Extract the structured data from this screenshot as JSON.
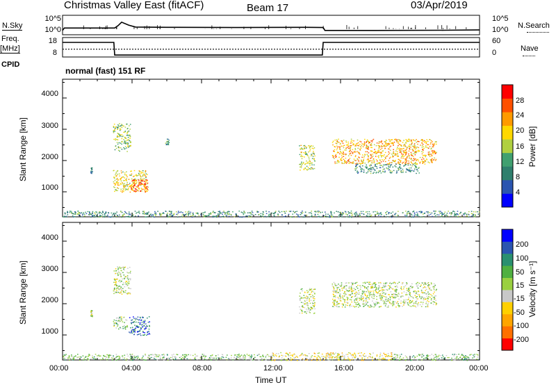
{
  "header": {
    "title": "Christmas Valley East (fitACF)",
    "beam": "Beam 17",
    "date": "03/Apr/2019"
  },
  "top_panels": {
    "sky_label": "N.Sky",
    "sky_ticks": [
      "10^5",
      "10^0"
    ],
    "search_label": "N.Search",
    "search_ticks": [
      "10^5",
      "10^0"
    ],
    "freq_label_1": "Freq.",
    "freq_label_2": "[MHz]",
    "freq_ticks": [
      "18",
      "8"
    ],
    "nave_label": "Nave",
    "nave_ticks": [
      "60",
      "0"
    ],
    "cpid_label": "CPID",
    "mode_text": "normal (fast) 151 RF"
  },
  "axes": {
    "xlabel": "Time UT",
    "x_ticks": [
      "00:00",
      "04:00",
      "08:00",
      "12:00",
      "16:00",
      "20:00",
      "00:00"
    ],
    "ylabel": "Slant Range [km]",
    "y_ticks": [
      "4000",
      "3000",
      "2000",
      "1000"
    ]
  },
  "colorbars": {
    "power_label": "Power [dB]",
    "power_ticks": [
      "28",
      "24",
      "20",
      "16",
      "12",
      "8",
      "4"
    ],
    "velocity_label": "Velocity [m s⁻¹]",
    "velocity_ticks": [
      "200",
      "100",
      "50",
      "15",
      "-15",
      "-50",
      "-100",
      "-200"
    ]
  },
  "colors": {
    "power_scale": [
      "#0000ff",
      "#2b55b0",
      "#2f7f6d",
      "#40a070",
      "#b0d040",
      "#ffd800",
      "#ff9a00",
      "#ff5000",
      "#ff0000"
    ],
    "velocity_scale": [
      "#ff0000",
      "#ff7000",
      "#ffa500",
      "#ffd000",
      "#c8c8c8",
      "#9ad040",
      "#50b040",
      "#2a9070",
      "#2b55b0",
      "#0000ff"
    ]
  },
  "chart_data": [
    {
      "type": "line",
      "title": "N.Sky / N.Search",
      "x_unit": "hours UT",
      "xlim": [
        0,
        24
      ],
      "series": [
        {
          "name": "N.Sky",
          "x": [
            0,
            0.1,
            3.0,
            3.2,
            3.4,
            3.8,
            4.2,
            6,
            10,
            14,
            15.0,
            15.1,
            18,
            22,
            23.9,
            24
          ],
          "y": [
            0.3,
            0.55,
            0.55,
            0.8,
            1.15,
            0.85,
            0.65,
            0.62,
            0.6,
            0.62,
            0.6,
            0.3,
            0.3,
            0.32,
            0.35,
            0.35
          ]
        }
      ]
    },
    {
      "type": "line",
      "title": "Freq. / Nave",
      "x_unit": "hours UT",
      "xlim": [
        0,
        24
      ],
      "ylim": [
        8,
        18
      ],
      "series": [
        {
          "name": "Freq.",
          "x": [
            0,
            2.95,
            3.0,
            14.95,
            15.0,
            24
          ],
          "y": [
            15.5,
            15.5,
            9.0,
            9.0,
            15.5,
            15.5
          ]
        },
        {
          "name": "Nave",
          "x": [
            0,
            24
          ],
          "y": [
            12,
            12
          ]
        }
      ]
    },
    {
      "type": "heatmap",
      "title": "Power [dB]",
      "xlabel": "Time UT",
      "ylabel": "Slant Range [km]",
      "xlim": [
        0,
        24
      ],
      "ylim": [
        200,
        4600
      ],
      "clim": [
        0,
        30
      ],
      "regions": [
        {
          "t": [
            2.9,
            3.9
          ],
          "r": [
            2300,
            3200
          ],
          "value": 14
        },
        {
          "t": [
            2.9,
            4.9
          ],
          "r": [
            1000,
            1700
          ],
          "value": 18
        },
        {
          "t": [
            3.9,
            4.9
          ],
          "r": [
            1000,
            1400
          ],
          "value": 26
        },
        {
          "t": [
            1.6,
            1.7
          ],
          "r": [
            1600,
            1800
          ],
          "value": 8
        },
        {
          "t": [
            5.9,
            6.1
          ],
          "r": [
            2500,
            2700
          ],
          "value": 10
        },
        {
          "t": [
            13.6,
            14.5
          ],
          "r": [
            1700,
            2500
          ],
          "value": 16
        },
        {
          "t": [
            15.5,
            21.5
          ],
          "r": [
            1900,
            2700
          ],
          "value": 20
        },
        {
          "t": [
            16.8,
            20.5
          ],
          "r": [
            1600,
            1900
          ],
          "value": 10
        },
        {
          "t": [
            0,
            24
          ],
          "r": [
            200,
            400
          ],
          "value": 10
        }
      ]
    },
    {
      "type": "heatmap",
      "title": "Velocity [m s⁻¹]",
      "xlabel": "Time UT",
      "ylabel": "Slant Range [km]",
      "xlim": [
        0,
        24
      ],
      "ylim": [
        200,
        4600
      ],
      "clim": [
        -250,
        250
      ],
      "regions": [
        {
          "t": [
            2.9,
            3.9
          ],
          "r": [
            2300,
            3200
          ],
          "value": 0
        },
        {
          "t": [
            3.8,
            5.0
          ],
          "r": [
            1000,
            1600
          ],
          "value": 150
        },
        {
          "t": [
            2.9,
            3.7
          ],
          "r": [
            1200,
            1600
          ],
          "value": 30
        },
        {
          "t": [
            1.6,
            1.7
          ],
          "r": [
            1600,
            1800
          ],
          "value": 0
        },
        {
          "t": [
            13.6,
            14.5
          ],
          "r": [
            1700,
            2500
          ],
          "value": 0
        },
        {
          "t": [
            15.5,
            21.5
          ],
          "r": [
            1900,
            2700
          ],
          "value": 0
        },
        {
          "t": [
            0,
            12
          ],
          "r": [
            200,
            400
          ],
          "value": 40
        },
        {
          "t": [
            12,
            19
          ],
          "r": [
            200,
            450
          ],
          "value": -40
        },
        {
          "t": [
            19,
            24
          ],
          "r": [
            200,
            400
          ],
          "value": 40
        }
      ]
    }
  ]
}
